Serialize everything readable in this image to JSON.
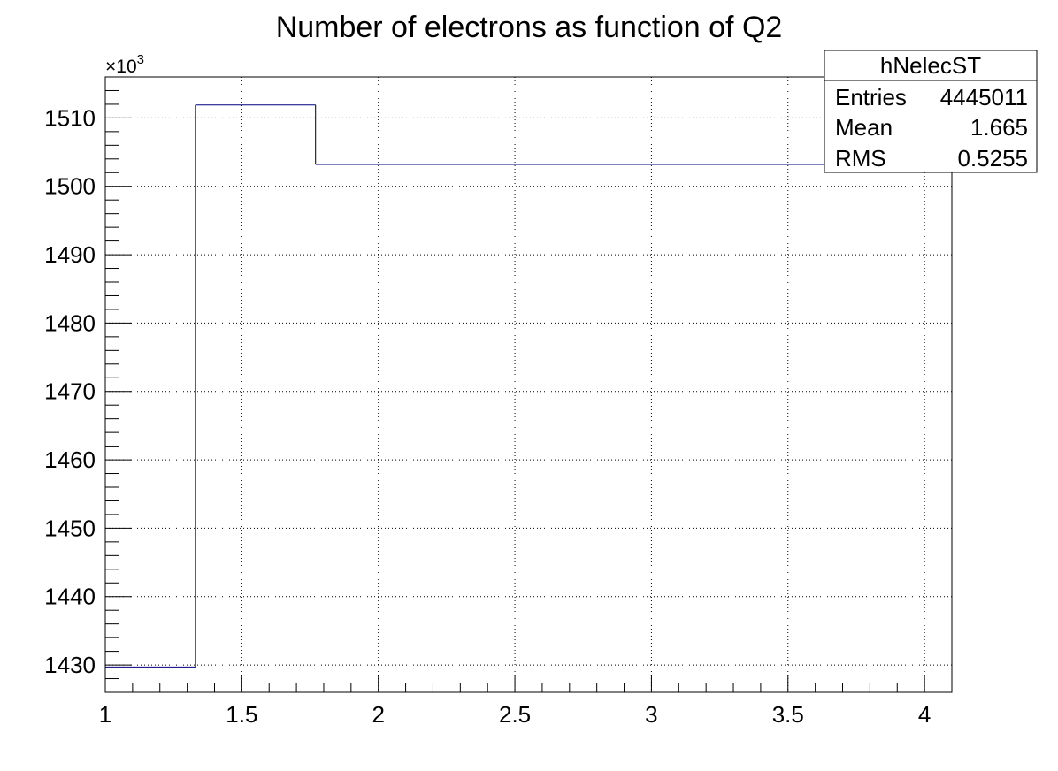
{
  "chart_data": {
    "type": "histogram",
    "title": "Number of electrons as function of Q2",
    "xlabel": "",
    "ylabel": "",
    "y_multiplier_label": "×10",
    "y_multiplier_exponent": "3",
    "xlim": [
      1,
      4.1
    ],
    "ylim": [
      1426,
      1516
    ],
    "x_ticks": [
      1,
      1.5,
      2,
      2.5,
      3,
      3.5,
      4
    ],
    "x_tick_labels": [
      "1",
      "1.5",
      "2",
      "2.5",
      "3",
      "3.5",
      "4"
    ],
    "y_ticks": [
      1430,
      1440,
      1450,
      1460,
      1470,
      1480,
      1490,
      1500,
      1510
    ],
    "y_tick_labels": [
      "1430",
      "1440",
      "1450",
      "1460",
      "1470",
      "1480",
      "1490",
      "1500",
      "1510"
    ],
    "grid": true,
    "line_color": "#000080",
    "bins": [
      {
        "x_low": 1.0,
        "x_high": 1.33,
        "value": 1429.7
      },
      {
        "x_low": 1.33,
        "x_high": 1.77,
        "value": 1511.9
      },
      {
        "x_low": 1.77,
        "x_high": 4.1,
        "value": 1503.2
      }
    ],
    "stats_box": {
      "name": "hNelecST",
      "rows": [
        {
          "label": "Entries",
          "value": "4445011"
        },
        {
          "label": "Mean",
          "value": "1.665"
        },
        {
          "label": "RMS",
          "value": "0.5255"
        }
      ],
      "position": "top-right"
    }
  }
}
